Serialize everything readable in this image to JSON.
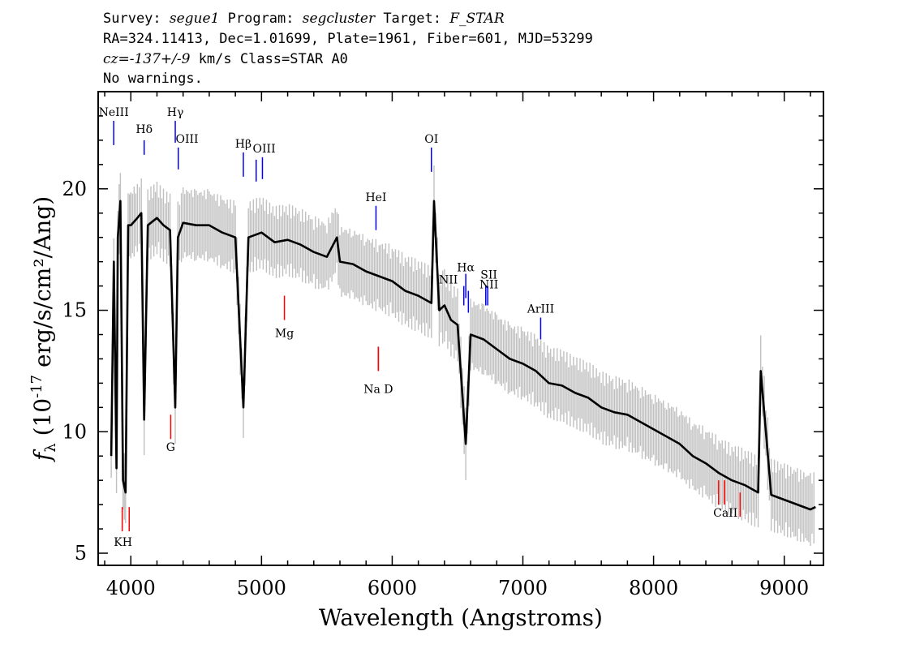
{
  "header": {
    "line1": [
      {
        "text": "Survey: ",
        "italic": false
      },
      {
        "text": "segue1",
        "italic": true
      },
      {
        "text": " Program: ",
        "italic": false
      },
      {
        "text": "segcluster",
        "italic": true
      },
      {
        "text": " Target: ",
        "italic": false
      },
      {
        "text": "F_STAR",
        "italic": true
      }
    ],
    "line2": "RA=324.11413, Dec=1.01699, Plate=1961, Fiber=601, MJD=53299",
    "line3": [
      {
        "text": "cz=-137+/-9",
        "italic": true
      },
      {
        "text": " km/s Class=STAR A0",
        "italic": false
      }
    ],
    "line4": "No warnings."
  },
  "colors": {
    "flux": "#000000",
    "error_band": "#c0c0c0",
    "emission_marker": "#0000ff",
    "absorption_marker": "#ff0000",
    "emission_label": "#000000"
  },
  "chart_data": {
    "type": "line",
    "xlabel": "Wavelength (Angstroms)",
    "ylabel": "f_λ (10^-17 erg/s/cm²/Ang)",
    "xlim": [
      3750,
      9300
    ],
    "ylim": [
      4.5,
      24.0
    ],
    "xticks": [
      4000,
      5000,
      6000,
      7000,
      8000,
      9000
    ],
    "yticks": [
      5,
      10,
      15,
      20
    ],
    "grid": false,
    "legend": "none",
    "series": [
      {
        "x": [
          3850,
          3870,
          3890,
          3900,
          3920,
          3940,
          3960,
          3980,
          4000,
          4050,
          4080,
          4102,
          4130,
          4200,
          4250,
          4300,
          4340,
          4360,
          4400,
          4500,
          4600,
          4700,
          4800,
          4861,
          4900,
          5000,
          5100,
          5200,
          5300,
          5400,
          5500,
          5577,
          5600,
          5700,
          5800,
          5900,
          6000,
          6100,
          6200,
          6300,
          6320,
          6360,
          6400,
          6450,
          6500,
          6563,
          6600,
          6700,
          6800,
          6900,
          7000,
          7100,
          7200,
          7300,
          7400,
          7500,
          7600,
          7700,
          7800,
          7900,
          8000,
          8100,
          8200,
          8300,
          8400,
          8500,
          8600,
          8700,
          8800,
          8820,
          8900,
          9000,
          9100,
          9200,
          9240
        ],
        "y": [
          9.0,
          17.0,
          8.5,
          18.0,
          19.5,
          8.0,
          7.5,
          18.5,
          18.5,
          18.8,
          19.0,
          10.5,
          18.5,
          18.8,
          18.5,
          18.3,
          11.0,
          18.0,
          18.6,
          18.5,
          18.5,
          18.2,
          18.0,
          11.0,
          18.0,
          18.2,
          17.8,
          17.9,
          17.7,
          17.4,
          17.2,
          18.0,
          17.0,
          16.9,
          16.6,
          16.4,
          16.2,
          15.8,
          15.6,
          15.3,
          19.5,
          15.0,
          15.2,
          14.6,
          14.4,
          9.5,
          14.0,
          13.8,
          13.4,
          13.0,
          12.8,
          12.5,
          12.0,
          11.9,
          11.6,
          11.4,
          11.0,
          10.8,
          10.7,
          10.4,
          10.1,
          9.8,
          9.5,
          9.0,
          8.7,
          8.3,
          8.0,
          7.8,
          7.5,
          12.5,
          7.4,
          7.2,
          7.0,
          6.8,
          6.9
        ]
      }
    ],
    "emission_lines": [
      {
        "label": "NeIII",
        "wave": 3869,
        "y1": 21.8,
        "y2": 22.8
      },
      {
        "label": "Hδ",
        "wave": 4102,
        "y1": 21.4,
        "y2": 22.0
      },
      {
        "label": "Hγ",
        "wave": 4340,
        "y1": 21.9,
        "y2": 22.8
      },
      {
        "label": "OIII",
        "wave": 4363,
        "y1": 20.8,
        "y2": 21.7
      },
      {
        "label": "Hβ",
        "wave": 4861,
        "y1": 20.5,
        "y2": 21.5
      },
      {
        "label": "OIII",
        "wave": 4959,
        "y1": 20.3,
        "y2": 21.2
      },
      {
        "label": "OIII",
        "wave": 5007,
        "y1": 20.4,
        "y2": 21.3
      },
      {
        "label": "OI",
        "wave": 6300,
        "y1": 20.7,
        "y2": 21.7
      },
      {
        "label": "HeI",
        "wave": 5876,
        "y1": 18.3,
        "y2": 19.3
      },
      {
        "label": "NII",
        "wave": 6548,
        "y1": 15.2,
        "y2": 16.0
      },
      {
        "label": "Hα",
        "wave": 6563,
        "y1": 15.5,
        "y2": 16.5
      },
      {
        "label": "NII",
        "wave": 6583,
        "y1": 14.9,
        "y2": 15.8
      },
      {
        "label": "SII",
        "wave": 6716,
        "y1": 15.2,
        "y2": 16.0
      },
      {
        "label": "SII",
        "wave": 6731,
        "y1": 15.2,
        "y2": 16.0
      },
      {
        "label": "ArIII",
        "wave": 7136,
        "y1": 13.8,
        "y2": 14.7
      }
    ],
    "absorption_lines": [
      {
        "label": "K",
        "wave": 3934,
        "y1": 5.9,
        "y2": 6.9
      },
      {
        "label": "H",
        "wave": 3969,
        "y1": 5.9,
        "y2": 6.9
      },
      {
        "label": "G",
        "wave": 4305,
        "y1": 9.7,
        "y2": 10.7
      },
      {
        "label": "Mg",
        "wave": 5175,
        "y1": 14.6,
        "y2": 15.6
      },
      {
        "label": "Na",
        "wave": 5894,
        "y1": 12.5,
        "y2": 13.5
      },
      {
        "label": "D",
        "wave": 5894,
        "y1": 12.5,
        "y2": 13.5
      },
      {
        "label": "CaII",
        "wave": 8498,
        "y1": 7.0,
        "y2": 8.0
      },
      {
        "label": "CaII",
        "wave": 8542,
        "y1": 7.0,
        "y2": 8.0
      },
      {
        "label": "CaII",
        "wave": 8662,
        "y1": 6.5,
        "y2": 7.5
      }
    ],
    "line_labels": [
      {
        "text": "NeIII",
        "wave": 3869,
        "y": 23.0,
        "kind": "emission"
      },
      {
        "text": "Hδ",
        "wave": 4102,
        "y": 22.3,
        "kind": "emission"
      },
      {
        "text": "Hγ",
        "wave": 4340,
        "y": 23.0,
        "kind": "emission"
      },
      {
        "text": "OIII",
        "wave": 4430,
        "y": 21.9,
        "kind": "emission"
      },
      {
        "text": "Hβ",
        "wave": 4861,
        "y": 21.7,
        "kind": "emission"
      },
      {
        "text": "OIII",
        "wave": 5020,
        "y": 21.5,
        "kind": "emission"
      },
      {
        "text": "OI",
        "wave": 6300,
        "y": 21.9,
        "kind": "emission"
      },
      {
        "text": "HeI",
        "wave": 5876,
        "y": 19.5,
        "kind": "emission"
      },
      {
        "text": "NII",
        "wave": 6430,
        "y": 16.1,
        "kind": "emission"
      },
      {
        "text": "Hα",
        "wave": 6563,
        "y": 16.6,
        "kind": "emission"
      },
      {
        "text": "SII",
        "wave": 6740,
        "y": 16.3,
        "kind": "emission"
      },
      {
        "text": "NII",
        "wave": 6740,
        "y": 15.9,
        "kind": "emission"
      },
      {
        "text": "ArIII",
        "wave": 7136,
        "y": 14.9,
        "kind": "emission"
      },
      {
        "text": "Mg",
        "wave": 5175,
        "y": 13.9,
        "kind": "absorption"
      },
      {
        "text": "Na  D",
        "wave": 5894,
        "y": 11.6,
        "kind": "absorption"
      },
      {
        "text": "G",
        "wave": 4305,
        "y": 9.2,
        "kind": "absorption"
      },
      {
        "text": "KH",
        "wave": 3940,
        "y": 5.3,
        "kind": "absorption"
      },
      {
        "text": "CaII",
        "wave": 8550,
        "y": 6.5,
        "kind": "absorption"
      }
    ]
  }
}
